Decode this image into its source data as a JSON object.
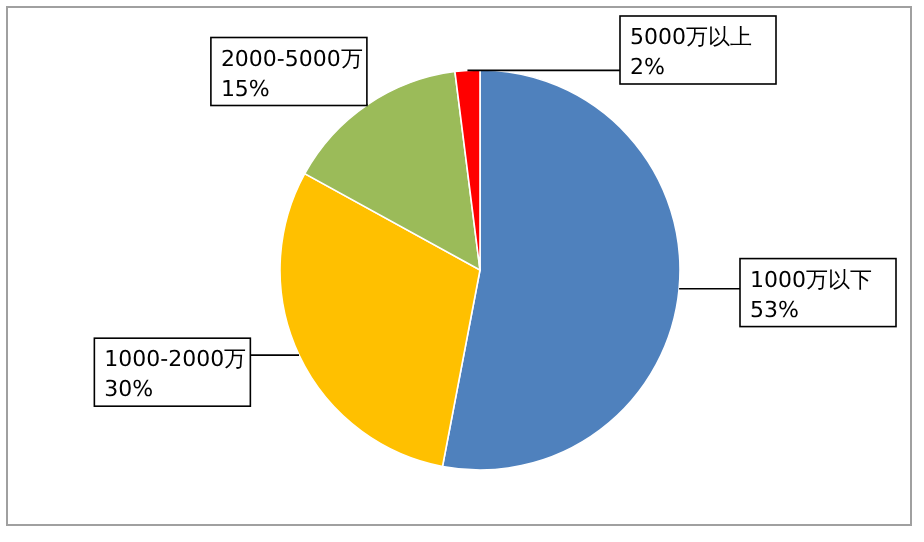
{
  "chart_data": {
    "type": "pie",
    "categories": [
      "1000万以下",
      "1000-2000万",
      "2000-5000万",
      "5000万以上"
    ],
    "values": [
      53,
      30,
      15,
      2
    ],
    "colors": [
      "#4f81bd",
      "#ffc000",
      "#9bbb59",
      "#ff0000"
    ],
    "value_labels": [
      "53%",
      "30%",
      "15%",
      "2%"
    ],
    "legend": false
  }
}
